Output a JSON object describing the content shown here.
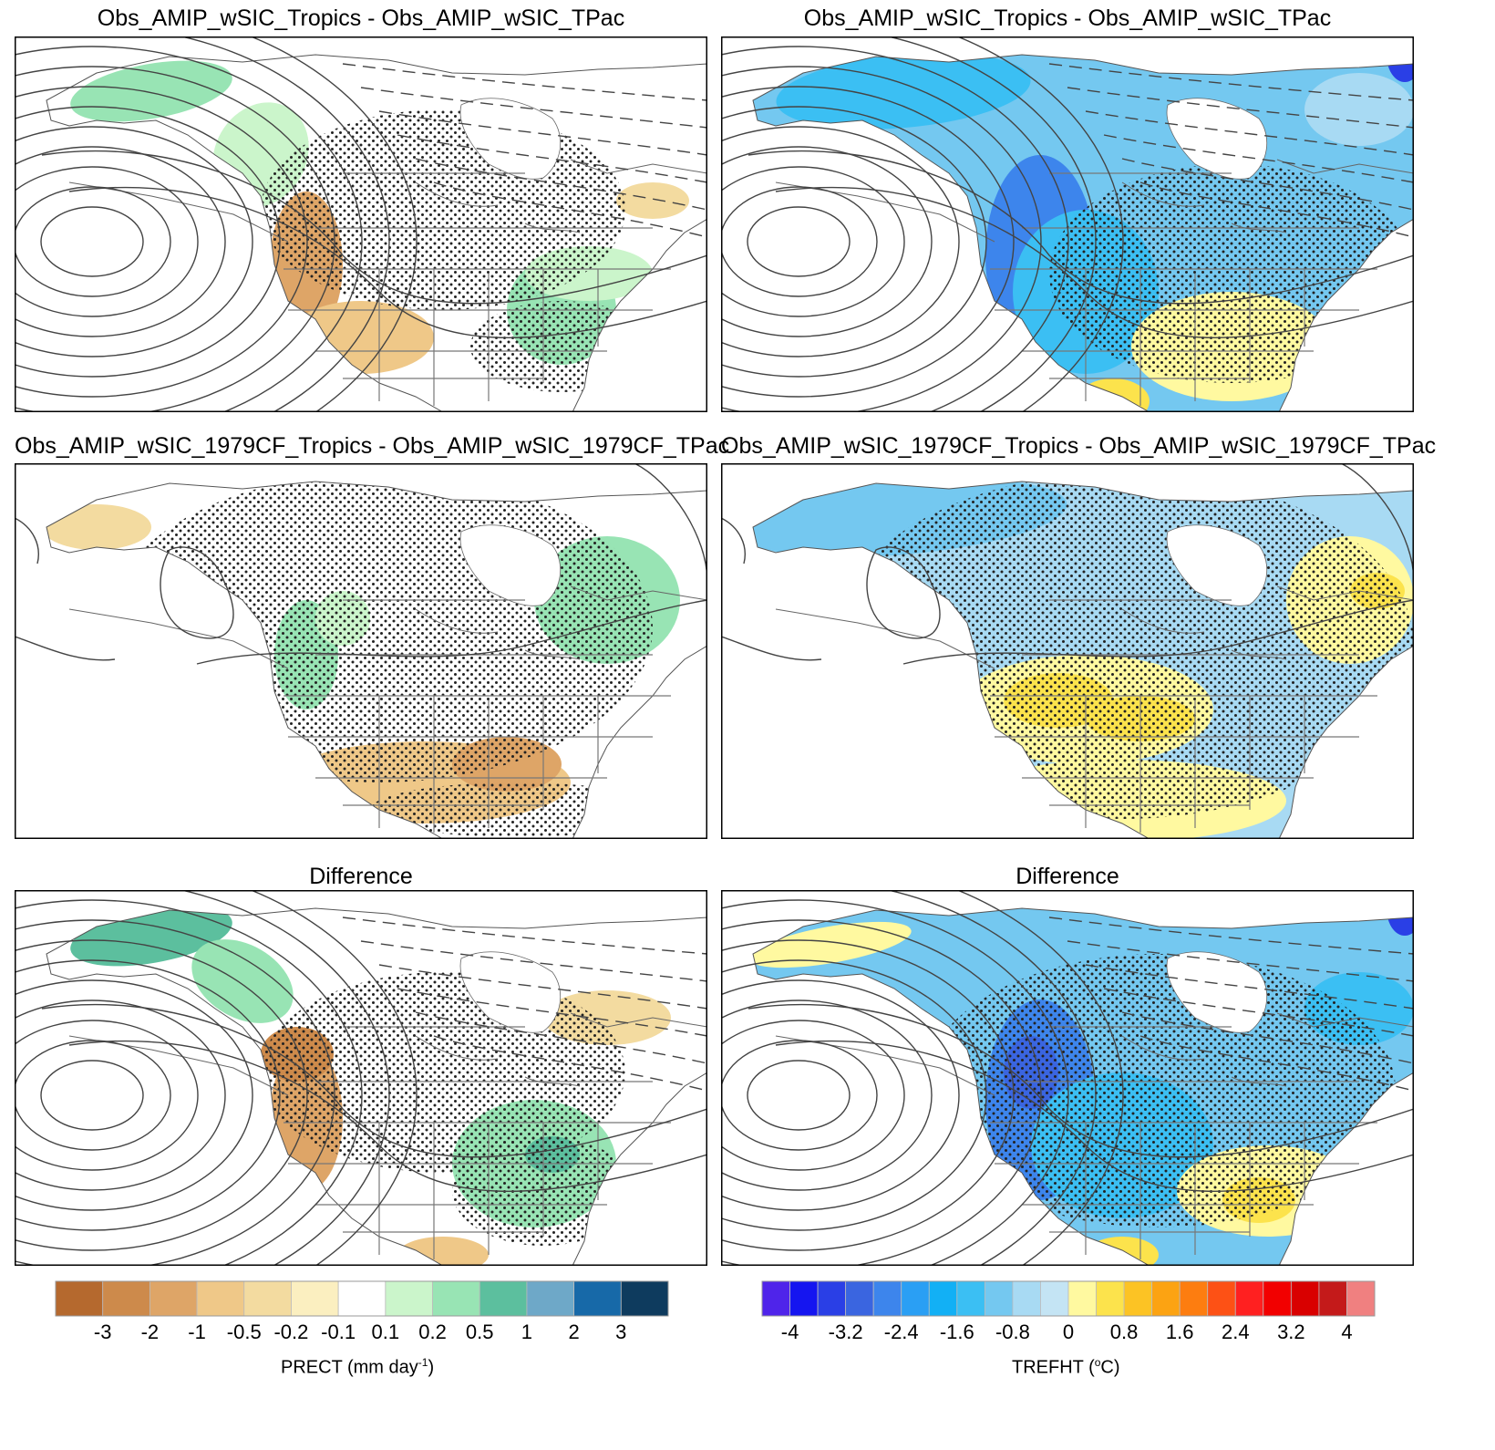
{
  "panels": {
    "top_left": {
      "title": "Obs_AMIP_wSIC_Tropics - Obs_AMIP_wSIC_TPac",
      "variable": "PRECT"
    },
    "top_right": {
      "title": "Obs_AMIP_wSIC_Tropics - Obs_AMIP_wSIC_TPac",
      "variable": "TREFHT"
    },
    "mid_left": {
      "title": "Obs_AMIP_wSIC_1979CF_Tropics - Obs_AMIP_wSIC_1979CF_TPac",
      "variable": "PRECT"
    },
    "mid_right": {
      "title": "Obs_AMIP_wSIC_1979CF_Tropics - Obs_AMIP_wSIC_1979CF_TPac",
      "variable": "TREFHT"
    },
    "bot_left": {
      "title": "Difference",
      "variable": "PRECT"
    },
    "bot_right": {
      "title": "Difference",
      "variable": "TREFHT"
    }
  },
  "prect_colorbar": {
    "label": "PRECT (mm day",
    "label_sup": "-1",
    "label_end": ")",
    "ticks": [
      "-3",
      "-2",
      "-1",
      "-0.5",
      "-0.2",
      "-0.1",
      "0.1",
      "0.2",
      "0.5",
      "1",
      "2",
      "3"
    ],
    "colors": [
      "#b5692e",
      "#cd8a4b",
      "#dea567",
      "#efc888",
      "#f3dba0",
      "#fbefc0",
      "#ffffff",
      "#cbf5cb",
      "#98e4b4",
      "#5cbf9e",
      "#6ea8c8",
      "#1769a8",
      "#0e3b5e"
    ]
  },
  "trefht_colorbar": {
    "label": "TREFHT (",
    "label_sup": "o",
    "label_end": "C)",
    "ticks": [
      "-4",
      "-3.2",
      "-2.4",
      "-1.6",
      "-0.8",
      "0",
      "0.8",
      "1.6",
      "2.4",
      "3.2",
      "4"
    ],
    "colors": [
      "#4f24ea",
      "#1515f0",
      "#2a3fe6",
      "#3a65e0",
      "#3d85ec",
      "#2a9ff4",
      "#12b0f5",
      "#3bbff3",
      "#74c8f0",
      "#a8daf3",
      "#c4e4f4",
      "#fff9a0",
      "#fce34c",
      "#fcc324",
      "#fca312",
      "#fd7d10",
      "#fd5115",
      "#ff2020",
      "#f20000",
      "#d90000",
      "#c41a1a",
      "#f08080"
    ]
  }
}
